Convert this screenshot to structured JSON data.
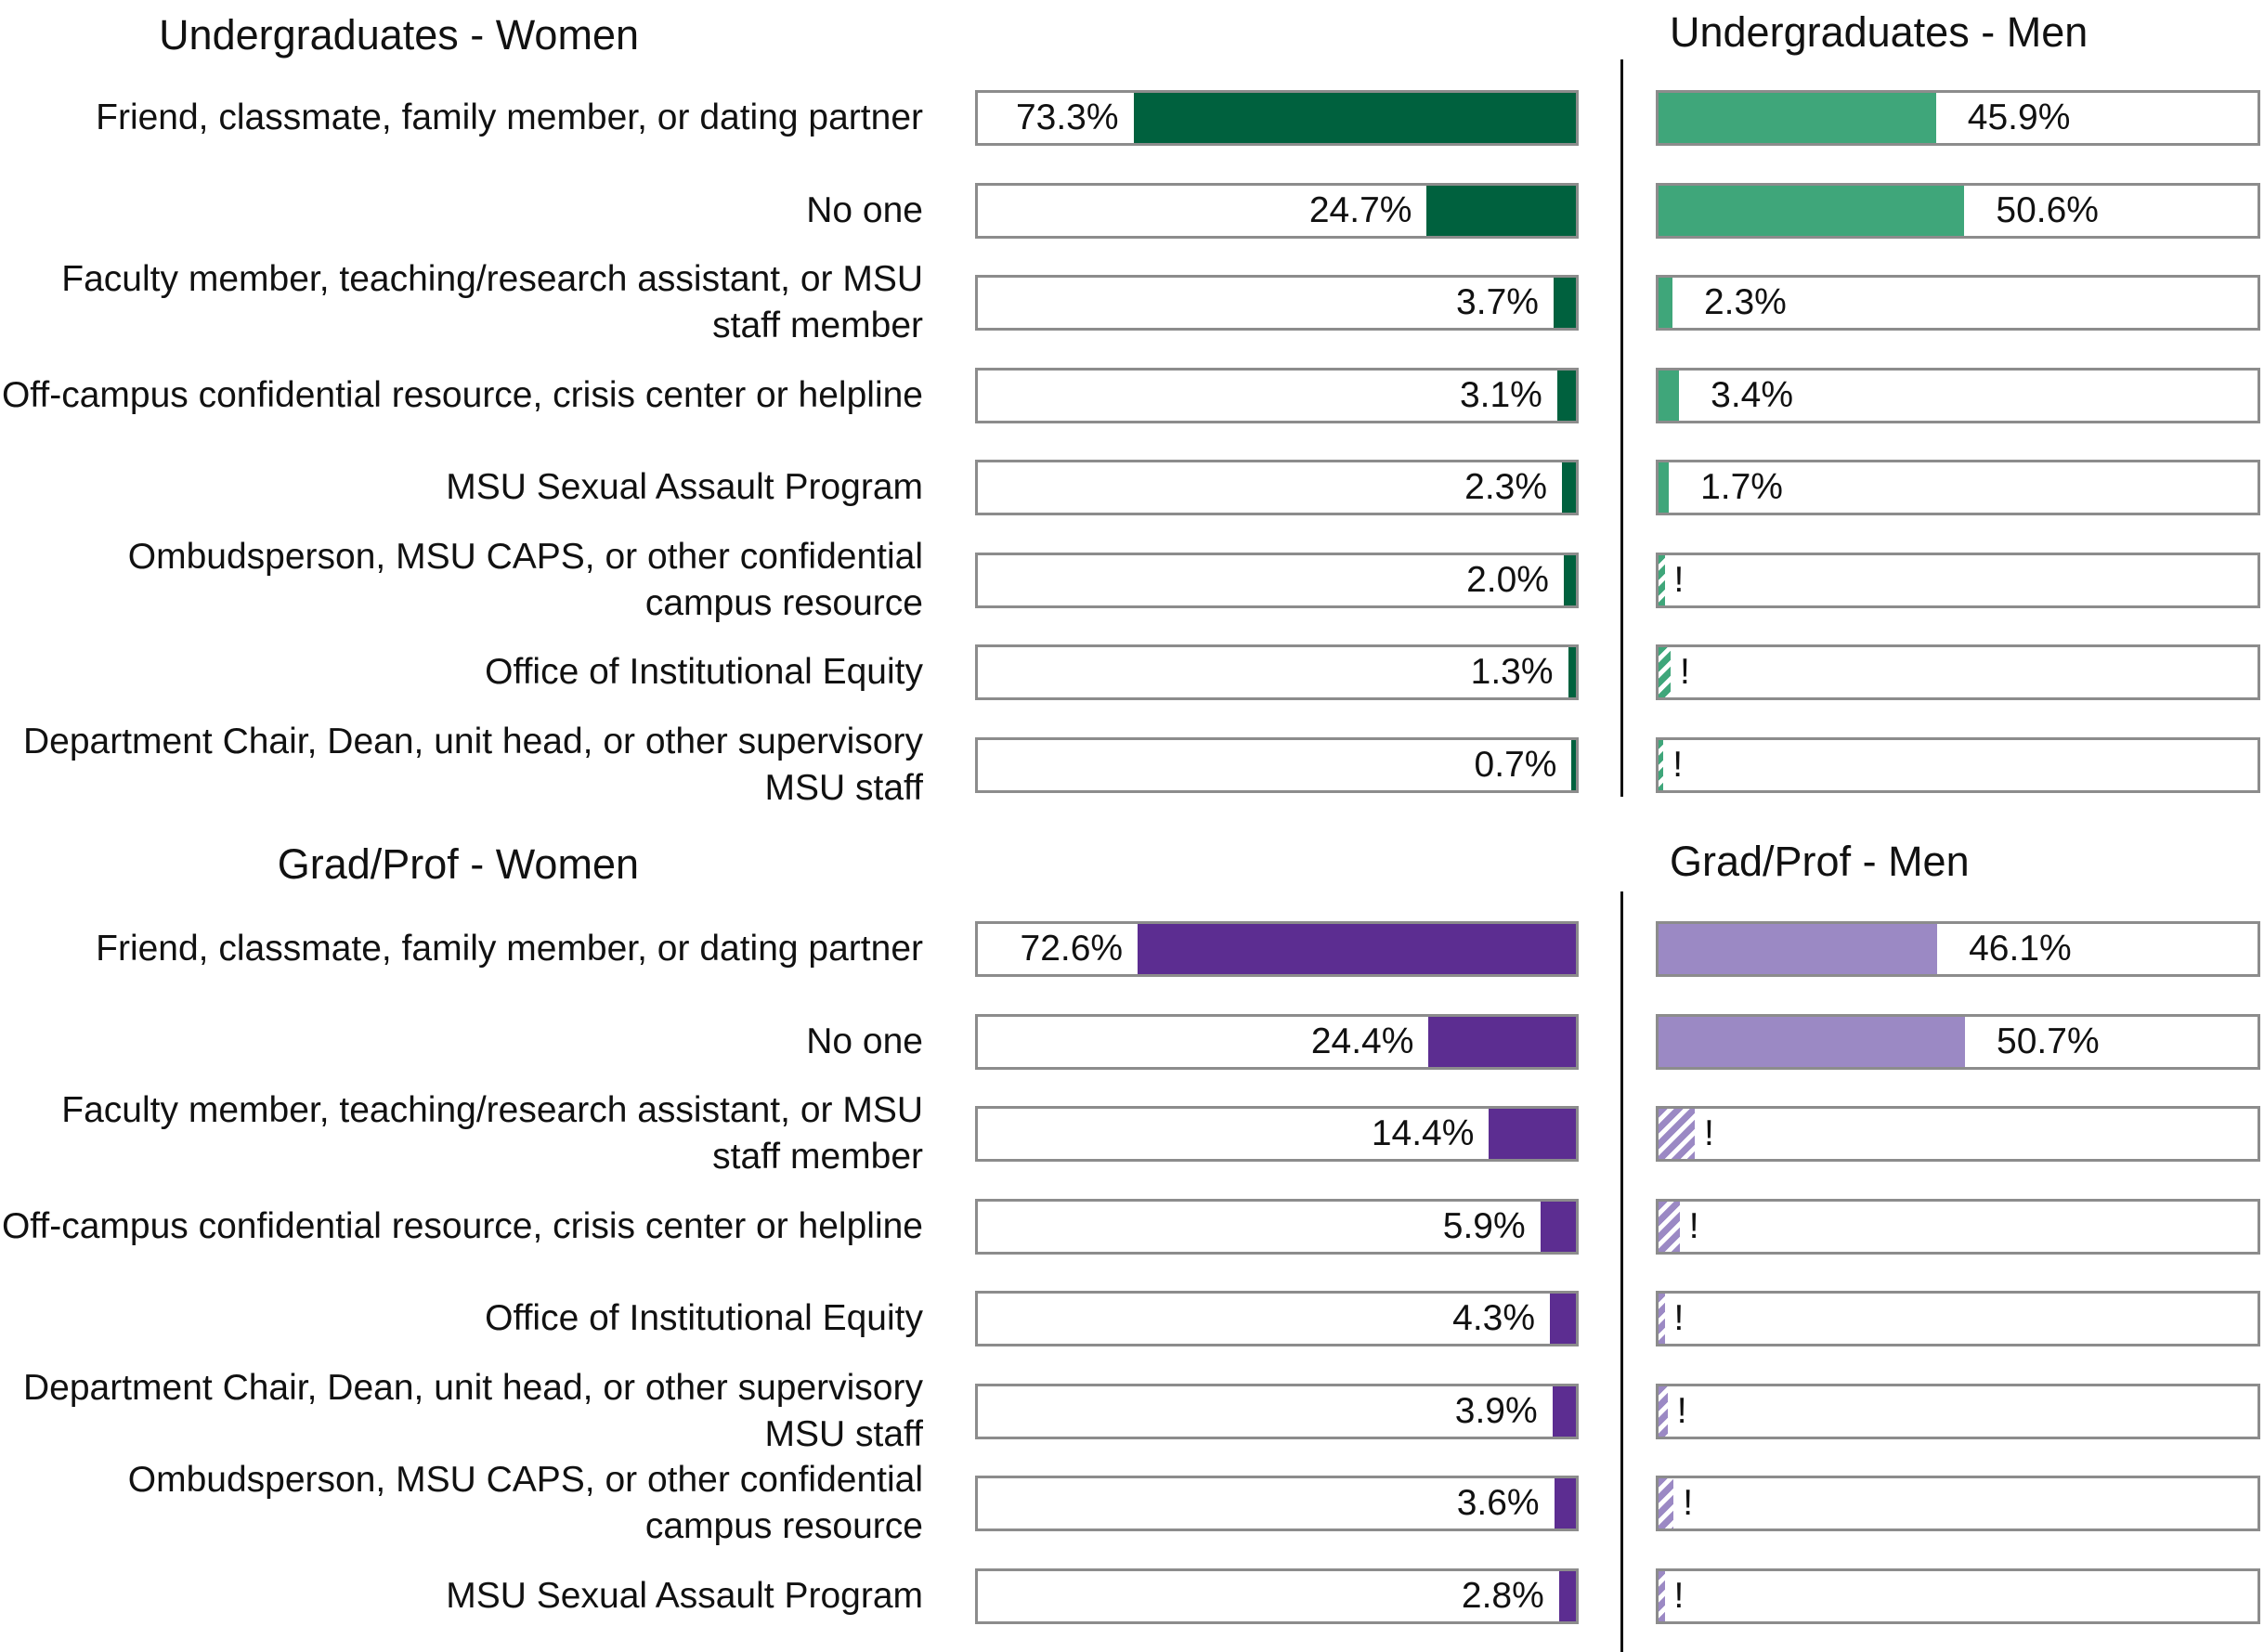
{
  "chart_data": [
    {
      "type": "bar",
      "title": "Undergraduates - Women",
      "color": "#00613e",
      "categories": [
        "Friend, classmate, family member, or dating partner",
        "No one",
        "Faculty member, teaching/research assistant, or MSU staff member",
        "Off-campus confidential resource, crisis center or helpline",
        "MSU Sexual Assault Program",
        "Ombudsperson, MSU CAPS, or other confidential campus resource",
        "Office of Institutional Equity",
        "Department Chair, Dean, unit head, or other supervisory MSU staff"
      ],
      "values": [
        73.3,
        24.7,
        3.7,
        3.1,
        2.3,
        2.0,
        1.3,
        0.7
      ],
      "labels": [
        "73.3%",
        "24.7%",
        "3.7%",
        "3.1%",
        "2.3%",
        "2.0%",
        "1.3%",
        "0.7%"
      ],
      "xlim": [
        0,
        100
      ]
    },
    {
      "type": "bar",
      "title": "Undergraduates - Men",
      "color": "#3fa67a",
      "categories": [
        "Friend, classmate, family member, or dating partner",
        "No one",
        "Faculty member, teaching/research assistant, or MSU staff member",
        "Off-campus confidential resource, crisis center or helpline",
        "MSU Sexual Assault Program",
        "Ombudsperson, MSU CAPS, or other confidential campus resource",
        "Office of Institutional Equity",
        "Department Chair, Dean, unit head, or other supervisory MSU staff"
      ],
      "values": [
        45.9,
        50.6,
        2.3,
        3.4,
        1.7,
        1.0,
        2.0,
        0.8
      ],
      "labels": [
        "45.9%",
        "50.6%",
        "2.3%",
        "3.4%",
        "1.7%",
        "!",
        "!",
        "!"
      ],
      "suppressed": [
        false,
        false,
        false,
        false,
        false,
        true,
        true,
        true
      ],
      "xlim": [
        0,
        100
      ]
    },
    {
      "type": "bar",
      "title": "Grad/Prof - Women",
      "color": "#5c2d91",
      "categories": [
        "Friend, classmate, family member, or dating partner",
        "No one",
        "Faculty member, teaching/research assistant, or MSU staff member",
        "Off-campus confidential resource, crisis center or helpline",
        "Office of Institutional Equity",
        "Department Chair, Dean, unit head, or other supervisory MSU staff",
        "Ombudsperson, MSU CAPS, or other confidential campus resource",
        "MSU Sexual Assault Program"
      ],
      "values": [
        72.6,
        24.4,
        14.4,
        5.9,
        4.3,
        3.9,
        3.6,
        2.8
      ],
      "labels": [
        "72.6%",
        "24.4%",
        "14.4%",
        "5.9%",
        "4.3%",
        "3.9%",
        "3.6%",
        "2.8%"
      ],
      "xlim": [
        0,
        100
      ]
    },
    {
      "type": "bar",
      "title": "Grad/Prof - Men",
      "color": "#9b89c4",
      "categories": [
        "Friend, classmate, family member, or dating partner",
        "No one",
        "Faculty member, teaching/research assistant, or MSU staff member",
        "Off-campus confidential resource, crisis center or helpline",
        "Office of Institutional Equity",
        "Department Chair, Dean, unit head, or other supervisory MSU staff",
        "Ombudsperson, MSU CAPS, or other confidential campus resource",
        "MSU Sexual Assault Program"
      ],
      "values": [
        46.1,
        50.7,
        6.0,
        3.5,
        1.0,
        1.5,
        2.5,
        1.0
      ],
      "labels": [
        "46.1%",
        "50.7%",
        "!",
        "!",
        "!",
        "!",
        "!",
        "!"
      ],
      "suppressed": [
        false,
        false,
        true,
        true,
        true,
        true,
        true,
        true
      ],
      "xlim": [
        0,
        100
      ]
    }
  ]
}
